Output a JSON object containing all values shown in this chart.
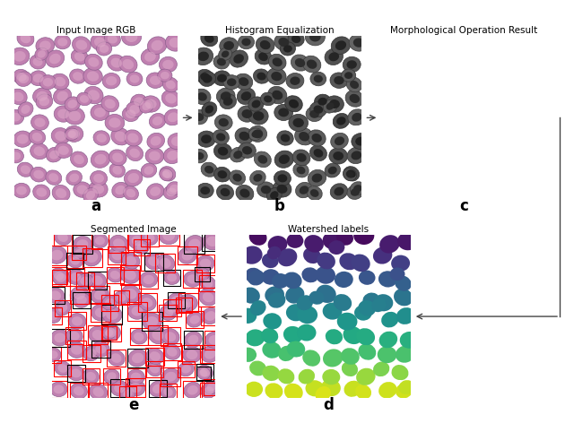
{
  "panels": {
    "a": {
      "label": "Input Image RGB",
      "letter": "a"
    },
    "b": {
      "label": "Histogram Equalization",
      "letter": "b"
    },
    "c": {
      "label": "Morphological Operation Result",
      "letter": "c"
    },
    "d": {
      "label": "Watershed labels",
      "letter": "d"
    },
    "e": {
      "label": "Segmented Image",
      "letter": "e"
    }
  },
  "rbc_bg_color": "#ddeedd",
  "hist_bg_color": "#d0d0d0",
  "morph_bg_color": "#000000",
  "watershed_bg_color": "#2d0a5a",
  "rbc_fill": "#c080b0",
  "rbc_edge": "#906090",
  "rbc_inner": "#e0a8cc",
  "arrow_color": "#444444",
  "bg_color": "#ffffff",
  "label_fontsize": 7.5,
  "letter_fontsize": 12
}
